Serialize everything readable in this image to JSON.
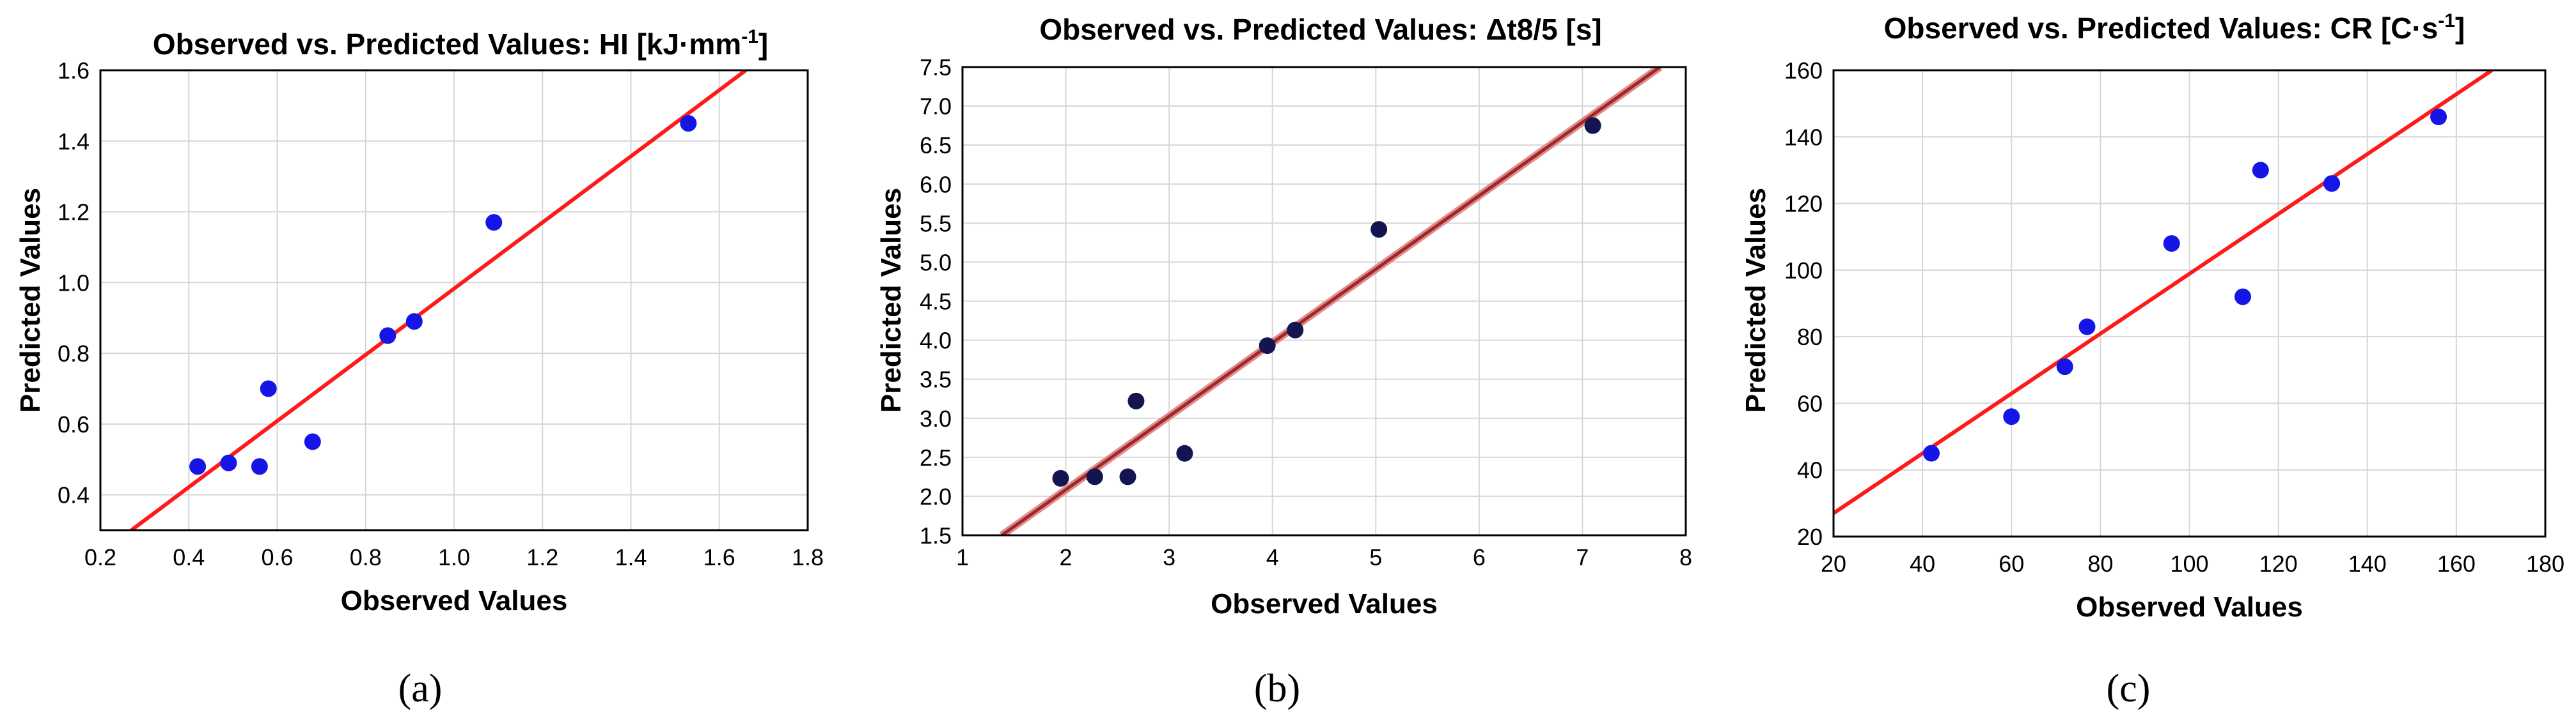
{
  "chart_data": [
    {
      "type": "scatter",
      "title": "Observed vs. Predicted Values: HI [kJ·mm",
      "title_superscript": "-1",
      "title_suffix": "]",
      "xlabel": "Observed Values",
      "ylabel": "Predicted Values",
      "xlim": [
        0.2,
        1.8
      ],
      "ylim": [
        0.3,
        1.6
      ],
      "xticks": [
        0.2,
        0.4,
        0.6,
        0.8,
        1.0,
        1.2,
        1.4,
        1.6,
        1.8
      ],
      "xtick_labels": [
        "0.2",
        "0.4",
        "0.6",
        "0.8",
        "1.0",
        "1.2",
        "1.4",
        "1.6",
        "1.8"
      ],
      "yticks": [
        0.4,
        0.6,
        0.8,
        1.0,
        1.2,
        1.4,
        1.6
      ],
      "ytick_labels": [
        "0.4",
        "0.6",
        "0.8",
        "1.0",
        "1.2",
        "1.4",
        "1.6"
      ],
      "grid": true,
      "x": [
        0.42,
        0.49,
        0.56,
        0.58,
        0.68,
        0.85,
        0.91,
        1.09,
        1.53
      ],
      "y": [
        0.48,
        0.49,
        0.48,
        0.7,
        0.55,
        0.85,
        0.89,
        1.17,
        1.45
      ],
      "point_color": "#1515e6",
      "fit_line": {
        "x": [
          0.27,
          1.66
        ],
        "y": [
          0.3,
          1.6
        ],
        "color": "#ff1a1a"
      },
      "panel_label": "(a)"
    },
    {
      "type": "scatter",
      "title": "Observed vs. Predicted Values: Δt8/5 [s]",
      "xlabel": "Observed Values",
      "ylabel": "Predicted Values",
      "xlim": [
        1,
        8
      ],
      "ylim": [
        1.5,
        7.5
      ],
      "xticks": [
        1,
        2,
        3,
        4,
        5,
        6,
        7,
        8
      ],
      "xtick_labels": [
        "1",
        "2",
        "3",
        "4",
        "5",
        "6",
        "7",
        "8"
      ],
      "yticks": [
        1.5,
        2.0,
        2.5,
        3.0,
        3.5,
        4.0,
        4.5,
        5.0,
        5.5,
        6.0,
        6.5,
        7.0,
        7.5
      ],
      "ytick_labels": [
        "1.5",
        "2.0",
        "2.5",
        "3.0",
        "3.5",
        "4.0",
        "4.5",
        "5.0",
        "5.5",
        "6.0",
        "6.5",
        "7.0",
        "7.5"
      ],
      "grid": true,
      "x": [
        1.95,
        2.28,
        2.6,
        2.68,
        3.15,
        3.95,
        4.22,
        5.03,
        7.1
      ],
      "y": [
        2.23,
        2.25,
        2.25,
        3.22,
        2.55,
        3.93,
        4.13,
        5.42,
        6.75
      ],
      "point_color": "#141450",
      "fit_line": {
        "x": [
          1.38,
          7.75
        ],
        "y": [
          1.5,
          7.5
        ],
        "color": "#9a2a2a",
        "halo_color": "#e58a8a"
      },
      "panel_label": "(b)"
    },
    {
      "type": "scatter",
      "title": "Observed vs. Predicted Values: CR [C·s",
      "title_superscript": "-1",
      "title_suffix": "]",
      "xlabel": "Observed Values",
      "ylabel": "Predicted Values",
      "xlim": [
        20,
        180
      ],
      "ylim": [
        20,
        160
      ],
      "xticks": [
        20,
        40,
        60,
        80,
        100,
        120,
        140,
        160,
        180
      ],
      "xtick_labels": [
        "20",
        "40",
        "60",
        "80",
        "100",
        "120",
        "140",
        "160",
        "180"
      ],
      "yticks": [
        20,
        40,
        60,
        80,
        100,
        120,
        140,
        160
      ],
      "ytick_labels": [
        "20",
        "40",
        "60",
        "80",
        "100",
        "120",
        "140",
        "160"
      ],
      "grid": true,
      "x": [
        42,
        60,
        72,
        77,
        96,
        112,
        116,
        132,
        156
      ],
      "y": [
        45,
        56,
        71,
        83,
        108,
        92,
        130,
        126,
        146
      ],
      "point_color": "#1515e6",
      "fit_line": {
        "x": [
          20,
          168
        ],
        "y": [
          27,
          160
        ],
        "color": "#ff1a1a"
      },
      "panel_label": "(c)"
    }
  ]
}
